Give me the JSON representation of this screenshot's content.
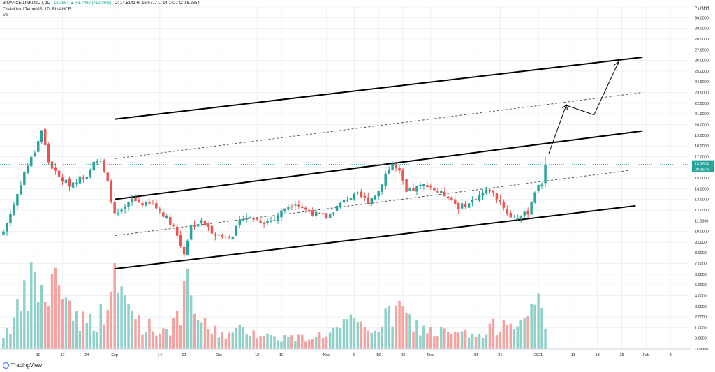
{
  "header": {
    "symbol": "BINANCE:LINKUSDT, 1D",
    "change": "16.2654 ▲ +1.7492 (+12.05%)",
    "ohlc": "O: 14.5141  H: 16.9777  L: 14.1427  C: 16.2654",
    "title": "ChainLink / TetherUS, 1D, BINANCE",
    "indicator": "Vol"
  },
  "axis_unit": "USDT",
  "footer": {
    "brand": "TradingView"
  },
  "colors": {
    "up": "#26a69a",
    "down": "#ef5350",
    "vol_up": "#8fd1c9",
    "vol_down": "#f4a3a1",
    "channel": "#000000",
    "grid": "#eef0f3",
    "price_line": "#26a69a"
  },
  "chart_data": {
    "type": "candlestick",
    "title": "ChainLink / TetherUS, 1D, BINANCE",
    "ylabel": "USDT",
    "ylim": [
      -1,
      31
    ],
    "y_ticks": [
      -1,
      0,
      1,
      2,
      3,
      4,
      5,
      6,
      7,
      8,
      9,
      10,
      11,
      12,
      13,
      14,
      15,
      16,
      17,
      18,
      19,
      20,
      21,
      22,
      23,
      24,
      25,
      26,
      27,
      28,
      29,
      30,
      31
    ],
    "x_ticks": [
      {
        "label": "10",
        "day": 10
      },
      {
        "label": "17",
        "day": 17
      },
      {
        "label": "24",
        "day": 24
      },
      {
        "label": "Sep",
        "day": 32
      },
      {
        "label": "14",
        "day": 45
      },
      {
        "label": "21",
        "day": 52
      },
      {
        "label": "Oct",
        "day": 62
      },
      {
        "label": "12",
        "day": 73
      },
      {
        "label": "19",
        "day": 80
      },
      {
        "label": "Nov",
        "day": 93
      },
      {
        "label": "9",
        "day": 101
      },
      {
        "label": "16",
        "day": 108
      },
      {
        "label": "23",
        "day": 115
      },
      {
        "label": "Dec",
        "day": 123
      },
      {
        "label": "14",
        "day": 136
      },
      {
        "label": "21",
        "day": 143
      },
      {
        "label": "2021",
        "day": 154
      },
      {
        "label": "11",
        "day": 164
      },
      {
        "label": "18",
        "day": 171
      },
      {
        "label": "25",
        "day": 178
      },
      {
        "label": "Feb",
        "day": 185
      },
      {
        "label": "8",
        "day": 192
      }
    ],
    "last_price": {
      "value": 16.2654,
      "label": "16.2654",
      "countdown": "08:16:49"
    },
    "pivot_price": {
      "value": 15.0,
      "label": "15.0000"
    },
    "price_anchors": [
      {
        "day": 0,
        "price": 10.0
      },
      {
        "day": 3,
        "price": 12.5
      },
      {
        "day": 6,
        "price": 15.5
      },
      {
        "day": 9,
        "price": 17.5
      },
      {
        "day": 11,
        "price": 19.5
      },
      {
        "day": 13,
        "price": 16.5
      },
      {
        "day": 16,
        "price": 15.0
      },
      {
        "day": 19,
        "price": 14.4
      },
      {
        "day": 21,
        "price": 14.8
      },
      {
        "day": 24,
        "price": 15.3
      },
      {
        "day": 26,
        "price": 16.7
      },
      {
        "day": 28,
        "price": 16.5
      },
      {
        "day": 30,
        "price": 14.5
      },
      {
        "day": 32,
        "price": 11.5
      },
      {
        "day": 34,
        "price": 11.8
      },
      {
        "day": 37,
        "price": 13.0
      },
      {
        "day": 40,
        "price": 12.6
      },
      {
        "day": 43,
        "price": 12.5
      },
      {
        "day": 46,
        "price": 11.6
      },
      {
        "day": 49,
        "price": 10.5
      },
      {
        "day": 51,
        "price": 8.7
      },
      {
        "day": 52,
        "price": 8.0
      },
      {
        "day": 54,
        "price": 10.5
      },
      {
        "day": 57,
        "price": 10.9
      },
      {
        "day": 60,
        "price": 10.0
      },
      {
        "day": 63,
        "price": 9.5
      },
      {
        "day": 66,
        "price": 9.7
      },
      {
        "day": 69,
        "price": 11.4
      },
      {
        "day": 72,
        "price": 11.2
      },
      {
        "day": 75,
        "price": 10.9
      },
      {
        "day": 78,
        "price": 11.1
      },
      {
        "day": 81,
        "price": 12.2
      },
      {
        "day": 84,
        "price": 12.7
      },
      {
        "day": 87,
        "price": 12.0
      },
      {
        "day": 90,
        "price": 11.6
      },
      {
        "day": 93,
        "price": 11.3
      },
      {
        "day": 96,
        "price": 12.3
      },
      {
        "day": 99,
        "price": 13.1
      },
      {
        "day": 102,
        "price": 13.4
      },
      {
        "day": 105,
        "price": 12.8
      },
      {
        "day": 108,
        "price": 13.8
      },
      {
        "day": 110,
        "price": 15.4
      },
      {
        "day": 112,
        "price": 16.3
      },
      {
        "day": 114,
        "price": 15.5
      },
      {
        "day": 116,
        "price": 13.6
      },
      {
        "day": 119,
        "price": 14.1
      },
      {
        "day": 122,
        "price": 14.4
      },
      {
        "day": 125,
        "price": 13.7
      },
      {
        "day": 128,
        "price": 13.3
      },
      {
        "day": 131,
        "price": 12.3
      },
      {
        "day": 134,
        "price": 12.6
      },
      {
        "day": 137,
        "price": 13.4
      },
      {
        "day": 140,
        "price": 13.9
      },
      {
        "day": 143,
        "price": 12.8
      },
      {
        "day": 146,
        "price": 11.3
      },
      {
        "day": 149,
        "price": 11.4
      },
      {
        "day": 151,
        "price": 11.8
      },
      {
        "day": 153,
        "price": 13.8
      },
      {
        "day": 155,
        "price": 14.5
      },
      {
        "day": 156,
        "price": 16.2654
      }
    ],
    "volume_anchors": [
      {
        "day": 0,
        "v": 1.2
      },
      {
        "day": 5,
        "v": 3.4
      },
      {
        "day": 9,
        "v": 5.9
      },
      {
        "day": 12,
        "v": 4.0
      },
      {
        "day": 16,
        "v": 6.1
      },
      {
        "day": 20,
        "v": 3.0
      },
      {
        "day": 24,
        "v": 2.2
      },
      {
        "day": 28,
        "v": 2.7
      },
      {
        "day": 32,
        "v": 5.3
      },
      {
        "day": 36,
        "v": 3.6
      },
      {
        "day": 40,
        "v": 2.1
      },
      {
        "day": 45,
        "v": 1.5
      },
      {
        "day": 50,
        "v": 2.3
      },
      {
        "day": 53,
        "v": 4.9
      },
      {
        "day": 57,
        "v": 2.0
      },
      {
        "day": 62,
        "v": 1.4
      },
      {
        "day": 66,
        "v": 1.2
      },
      {
        "day": 70,
        "v": 1.8
      },
      {
        "day": 75,
        "v": 1.1
      },
      {
        "day": 80,
        "v": 1.0
      },
      {
        "day": 85,
        "v": 0.9
      },
      {
        "day": 90,
        "v": 1.1
      },
      {
        "day": 95,
        "v": 1.5
      },
      {
        "day": 100,
        "v": 2.1
      },
      {
        "day": 105,
        "v": 1.6
      },
      {
        "day": 110,
        "v": 2.4
      },
      {
        "day": 114,
        "v": 3.3
      },
      {
        "day": 118,
        "v": 2.0
      },
      {
        "day": 123,
        "v": 1.5
      },
      {
        "day": 128,
        "v": 1.3
      },
      {
        "day": 133,
        "v": 1.2
      },
      {
        "day": 138,
        "v": 1.0
      },
      {
        "day": 143,
        "v": 2.3
      },
      {
        "day": 147,
        "v": 2.9
      },
      {
        "day": 151,
        "v": 2.0
      },
      {
        "day": 154,
        "v": 4.5
      },
      {
        "day": 156,
        "v": 2.3
      }
    ],
    "volume_ylim": [
      0,
      7.5
    ],
    "channels": [
      {
        "name": "outer-upper",
        "style": "solid",
        "width": 2,
        "p1": {
          "day": 32,
          "price": 20.5
        },
        "p2": {
          "day": 184,
          "price": 26.3
        }
      },
      {
        "name": "middle",
        "style": "solid",
        "width": 2,
        "p1": {
          "day": 32,
          "price": 13.0
        },
        "p2": {
          "day": 184,
          "price": 19.4
        }
      },
      {
        "name": "lower",
        "style": "solid",
        "width": 2,
        "p1": {
          "day": 32,
          "price": 6.5
        },
        "p2": {
          "day": 182,
          "price": 12.4
        }
      },
      {
        "name": "upper-mid-dotted",
        "style": "dotted",
        "width": 1,
        "p1": {
          "day": 32,
          "price": 16.8
        },
        "p2": {
          "day": 184,
          "price": 23.0
        }
      },
      {
        "name": "lower-mid-dotted",
        "style": "dotted",
        "width": 1,
        "p1": {
          "day": 32,
          "price": 9.6
        },
        "p2": {
          "day": 180,
          "price": 15.7
        }
      }
    ],
    "projection": [
      {
        "day": 157,
        "price": 17.3
      },
      {
        "day": 162,
        "price": 21.8
      },
      {
        "day": 170,
        "price": 20.9
      },
      {
        "day": 177,
        "price": 25.8
      }
    ]
  }
}
